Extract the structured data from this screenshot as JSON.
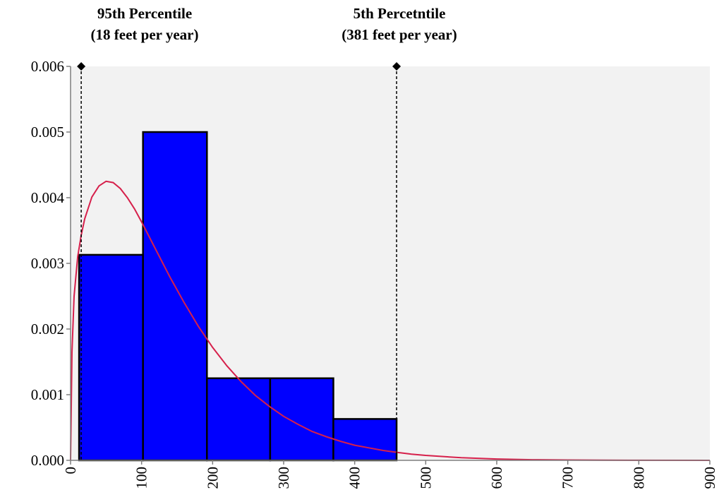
{
  "chart_data": {
    "type": "bar",
    "title": "",
    "xlabel": "",
    "ylabel": "",
    "xlim": [
      0,
      900
    ],
    "ylim": [
      0,
      0.006
    ],
    "x_ticks": [
      "0",
      "100",
      "200",
      "300",
      "400",
      "500",
      "600",
      "700",
      "800",
      "900"
    ],
    "y_ticks": [
      "0.000",
      "0.001",
      "0.002",
      "0.003",
      "0.004",
      "0.005",
      "0.006"
    ],
    "histogram": {
      "color": "#0000FF",
      "bins": [
        {
          "start": 12,
          "end": 102,
          "value": 0.00313
        },
        {
          "start": 102,
          "end": 192,
          "value": 0.005
        },
        {
          "start": 192,
          "end": 281,
          "value": 0.00125
        },
        {
          "start": 281,
          "end": 370,
          "value": 0.00125
        },
        {
          "start": 370,
          "end": 459,
          "value": 0.00063
        }
      ]
    },
    "fitted_curve": {
      "color": "#D6204B",
      "points": [
        [
          0,
          0.0
        ],
        [
          2,
          0.00165
        ],
        [
          5,
          0.0025
        ],
        [
          10,
          0.0031
        ],
        [
          15,
          0.00343
        ],
        [
          20,
          0.00368
        ],
        [
          30,
          0.00401
        ],
        [
          40,
          0.00418
        ],
        [
          50,
          0.00425
        ],
        [
          60,
          0.00423
        ],
        [
          70,
          0.00414
        ],
        [
          80,
          0.004
        ],
        [
          90,
          0.00383
        ],
        [
          100,
          0.00363
        ],
        [
          120,
          0.00321
        ],
        [
          140,
          0.00279
        ],
        [
          160,
          0.0024
        ],
        [
          180,
          0.00204
        ],
        [
          200,
          0.00172
        ],
        [
          220,
          0.00144
        ],
        [
          240,
          0.0012
        ],
        [
          260,
          0.00099
        ],
        [
          280,
          0.00082
        ],
        [
          300,
          0.00067
        ],
        [
          320,
          0.00055
        ],
        [
          340,
          0.00044
        ],
        [
          360,
          0.00036
        ],
        [
          380,
          0.00029
        ],
        [
          400,
          0.00023
        ],
        [
          420,
          0.00019
        ],
        [
          440,
          0.00015
        ],
        [
          460,
          0.00012
        ],
        [
          480,
          9.5e-05
        ],
        [
          500,
          7.5e-05
        ],
        [
          550,
          4e-05
        ],
        [
          600,
          2e-05
        ],
        [
          650,
          1e-05
        ],
        [
          700,
          5e-06
        ],
        [
          750,
          2.5e-06
        ],
        [
          800,
          1.2e-06
        ],
        [
          900,
          0.0
        ]
      ]
    },
    "markers": [
      {
        "x": 15,
        "y": 0.006,
        "label_line1": "95th Percentile",
        "label_line2": "(18 feet per year)"
      },
      {
        "x": 459,
        "y": 0.006,
        "label_line1": "5th Percetntile",
        "label_line2": "(381 feet per year)"
      }
    ],
    "plot_background": "#F2F2F2"
  }
}
